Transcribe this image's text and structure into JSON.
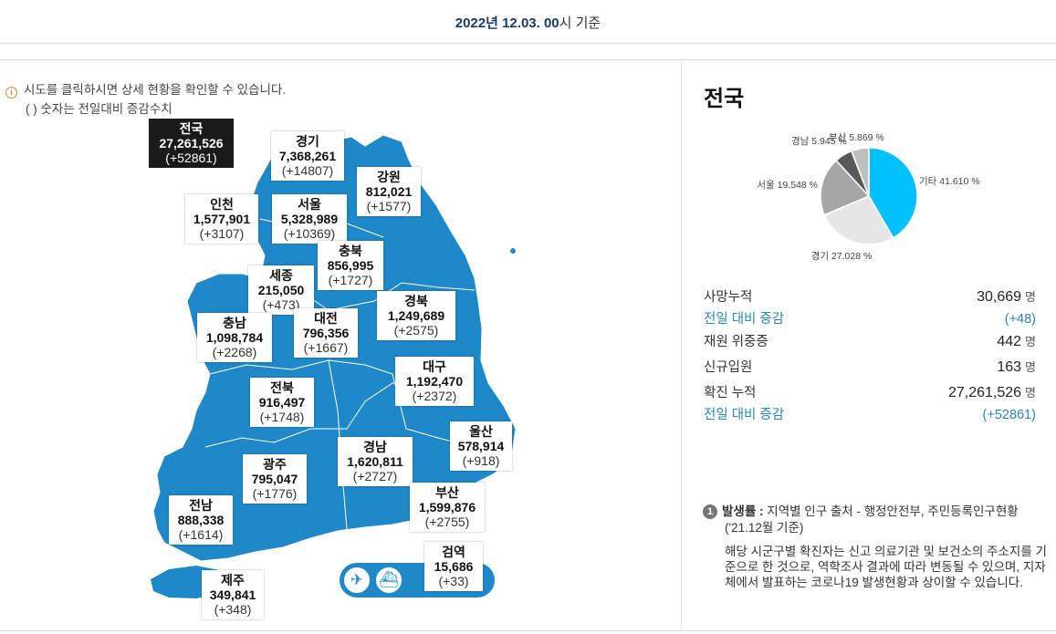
{
  "header": {
    "date_bold": "2022년 12.03. 00",
    "date_suffix": "시 기준"
  },
  "info": {
    "icon": "info-icon",
    "line1": "시도를 클릭하시면 상세 현황을 확인할 수 있습니다.",
    "line2": "( ) 숫자는 전일대비 증감수치"
  },
  "regions": {
    "national": {
      "name": "전국",
      "total": "27,261,526",
      "diff": "(+52861)"
    },
    "gyeonggi": {
      "name": "경기",
      "total": "7,368,261",
      "diff": "(+14807)"
    },
    "gangwon": {
      "name": "강원",
      "total": "812,021",
      "diff": "(+1577)"
    },
    "incheon": {
      "name": "인천",
      "total": "1,577,901",
      "diff": "(+3107)"
    },
    "seoul": {
      "name": "서울",
      "total": "5,328,989",
      "diff": "(+10369)"
    },
    "chungbuk": {
      "name": "충북",
      "total": "856,995",
      "diff": "(+1727)"
    },
    "sejong": {
      "name": "세종",
      "total": "215,050",
      "diff": "(+473)"
    },
    "gyeongbuk": {
      "name": "경북",
      "total": "1,249,689",
      "diff": "(+2575)"
    },
    "chungnam": {
      "name": "충남",
      "total": "1,098,784",
      "diff": "(+2268)"
    },
    "daejeon": {
      "name": "대전",
      "total": "796,356",
      "diff": "(+1667)"
    },
    "daegu": {
      "name": "대구",
      "total": "1,192,470",
      "diff": "(+2372)"
    },
    "jeonbuk": {
      "name": "전북",
      "total": "916,497",
      "diff": "(+1748)"
    },
    "ulsan": {
      "name": "울산",
      "total": "578,914",
      "diff": "(+918)"
    },
    "gyeongnam": {
      "name": "경남",
      "total": "1,620,811",
      "diff": "(+2727)"
    },
    "gwangju": {
      "name": "광주",
      "total": "795,047",
      "diff": "(+1776)"
    },
    "busan": {
      "name": "부산",
      "total": "1,599,876",
      "diff": "(+2755)"
    },
    "jeonnam": {
      "name": "전남",
      "total": "888,338",
      "diff": "(+1614)"
    },
    "quarantine": {
      "name": "검역",
      "total": "15,686",
      "diff": "(+33)"
    },
    "jeju": {
      "name": "제주",
      "total": "349,841",
      "diff": "(+348)"
    }
  },
  "airport": {
    "icon1": "airplane-icon",
    "icon2": "ship-icon"
  },
  "summary": {
    "title": "전국",
    "pie": [
      {
        "label": "기타 41.610 %",
        "value": 41.61,
        "color": "#00bfff"
      },
      {
        "label": "경기 27.028 %",
        "value": 27.028,
        "color": "#e6e6e6"
      },
      {
        "label": "서울 19.548 %",
        "value": 19.548,
        "color": "#a6a6a6"
      },
      {
        "label": "경남 5.945 %",
        "value": 5.945,
        "color": "#595959"
      },
      {
        "label": "부산 5.869 %",
        "value": 5.869,
        "color": "#bfbfbf"
      }
    ],
    "rows": [
      {
        "label": "사망누적",
        "value": "30,669",
        "unit": "명"
      },
      {
        "label": "전일 대비 증감",
        "value": "(+48)",
        "unit": ""
      },
      {
        "label": "재원 위중증",
        "value": "442",
        "unit": "명"
      },
      {
        "label": "신규입원",
        "value": "163",
        "unit": "명"
      },
      {
        "label": "확진 누적",
        "value": "27,261,526",
        "unit": "명"
      },
      {
        "label": "전일 대비 증감",
        "value": "(+52861)",
        "unit": ""
      }
    ]
  },
  "note": {
    "number": "1",
    "title": "발생률 :",
    "source": "지역별 인구 출처 - 행정안전부, 주민등록인구현황",
    "source2": "('21.12월 기준)",
    "body": "해당 시군구별 확진자는 신고 의료기관 및 보건소의 주소지를 기준으로 한 것으로, 역학조사 결과에 따라 변동될 수 있으며, 지자체에서 발표하는 코로나19 발생현황과 상이할 수 있습니다."
  }
}
